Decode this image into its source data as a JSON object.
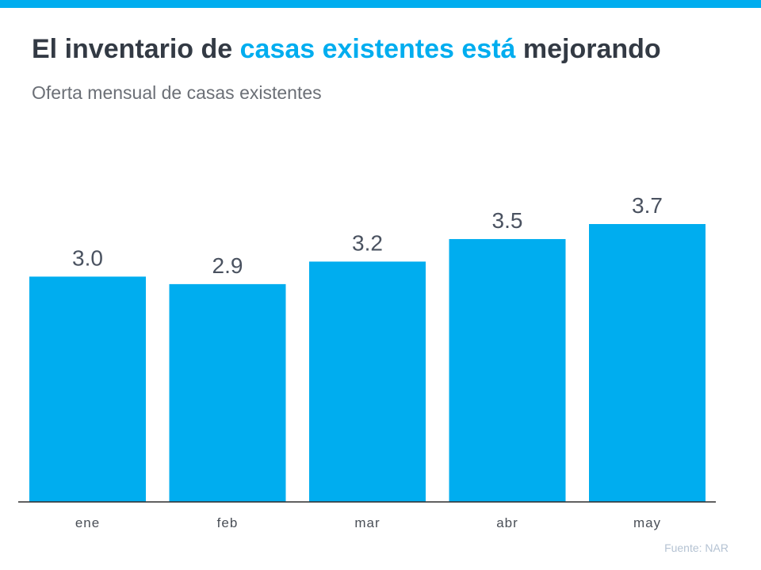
{
  "title": {
    "part1": "El inventario de ",
    "part2": "casas existentes está",
    "part3": " mejorando"
  },
  "subtitle": "Oferta mensual de casas existentes",
  "source": "Fuente:  NAR",
  "colors": {
    "accent": "#00adef",
    "bar": "#00adef",
    "title": "#333a44",
    "label": "#4a5260"
  },
  "chart_data": {
    "type": "bar",
    "title": "El inventario de casas existentes está mejorando",
    "subtitle": "Oferta mensual de casas existentes",
    "categories": [
      "ene",
      "feb",
      "mar",
      "abr",
      "may"
    ],
    "values": [
      3.0,
      2.9,
      3.2,
      3.5,
      3.7
    ],
    "value_labels": [
      "3.0",
      "2.9",
      "3.2",
      "3.5",
      "3.7"
    ],
    "xlabel": "",
    "ylabel": "",
    "ylim": [
      0,
      3.7
    ],
    "grid": false,
    "legend": "none"
  }
}
